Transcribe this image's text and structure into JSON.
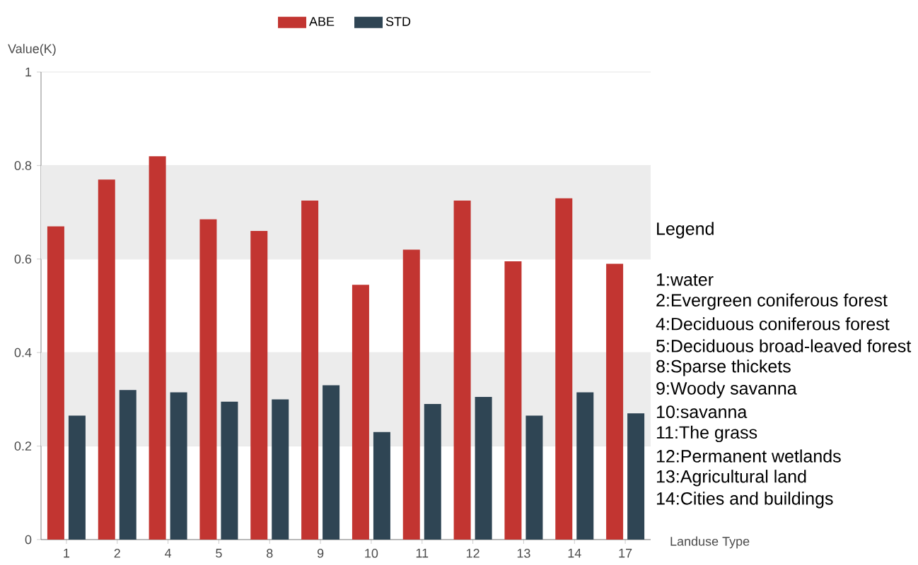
{
  "chart_data": {
    "type": "bar",
    "xlabel": "Landuse Type",
    "ylabel": "Value(K)",
    "categories": [
      "1",
      "2",
      "4",
      "5",
      "8",
      "9",
      "10",
      "11",
      "12",
      "13",
      "14",
      "17"
    ],
    "series": [
      {
        "name": "ABE",
        "color": "#c23531",
        "values": [
          0.67,
          0.77,
          0.82,
          0.685,
          0.66,
          0.725,
          0.545,
          0.62,
          0.725,
          0.595,
          0.73,
          0.59
        ]
      },
      {
        "name": "STD",
        "color": "#2f4554",
        "values": [
          0.265,
          0.32,
          0.315,
          0.295,
          0.3,
          0.33,
          0.23,
          0.29,
          0.305,
          0.265,
          0.315,
          0.27
        ]
      }
    ],
    "ylim": [
      0,
      1
    ],
    "yticks": [
      0,
      0.2,
      0.4,
      0.6,
      0.8,
      1
    ],
    "grid": "y",
    "legend": "top",
    "bands": [
      {
        "axis": "y",
        "from": 0.2,
        "to": 0.4,
        "color": "#ececec"
      },
      {
        "axis": "y",
        "from": 0.6,
        "to": 0.8,
        "color": "#ececec"
      }
    ],
    "annotations": [
      "Legend",
      "1:water",
      "2:Evergreen coniferous forest",
      "4:Deciduous coniferous forest",
      "5:Deciduous broad-leaved forest",
      "8:Sparse thickets",
      "9:Woody savanna",
      "10:savanna",
      "11:The grass",
      "12:Permanent wetlands",
      "13:Agricultural land",
      "14:Cities and buildings"
    ]
  }
}
